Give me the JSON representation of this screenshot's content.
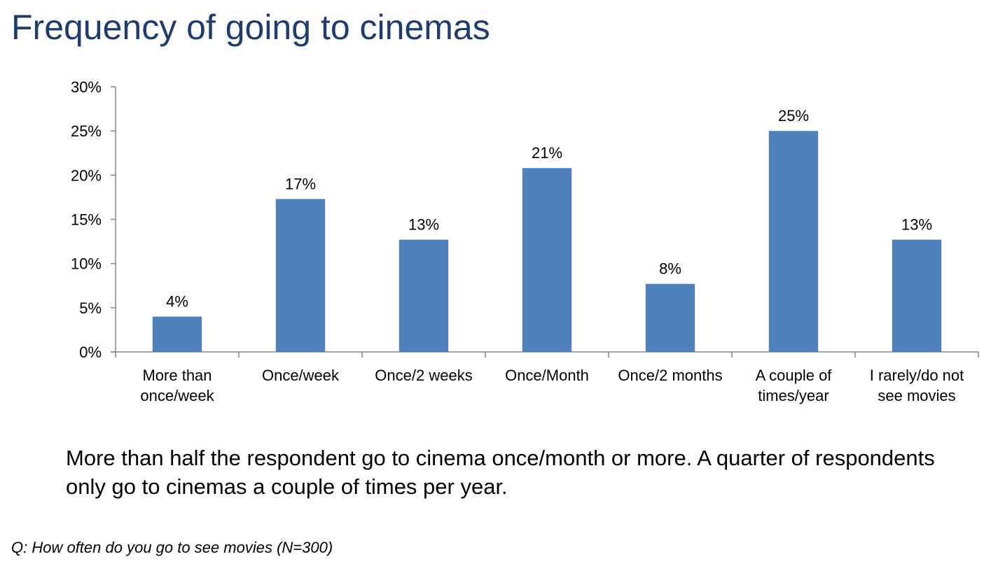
{
  "title": "Frequency of going to cinemas",
  "summary": "More than half the respondent go to cinema once/month or more. A quarter of respondents only go to cinemas a couple of times per year.",
  "footnote": "Q: How often do you go to see movies (N=300)",
  "colors": {
    "title": "#1f3c6e",
    "bar": "#4f81bd",
    "axis": "#868686"
  },
  "chart_data": {
    "type": "bar",
    "title": "",
    "xlabel": "",
    "ylabel": "",
    "ylim": [
      0,
      30
    ],
    "yticks": [
      "0%",
      "5%",
      "10%",
      "15%",
      "20%",
      "25%",
      "30%"
    ],
    "categories": [
      [
        "More than",
        "once/week"
      ],
      [
        "Once/week"
      ],
      [
        "Once/2 weeks"
      ],
      [
        "Once/Month"
      ],
      [
        "Once/2 months"
      ],
      [
        "A couple of",
        "times/year"
      ],
      [
        "I rarely/do not",
        "see movies"
      ]
    ],
    "values": [
      4,
      17.3,
      12.7,
      20.8,
      7.7,
      25,
      12.7
    ],
    "data_labels": [
      "4%",
      "17%",
      "13%",
      "21%",
      "8%",
      "25%",
      "13%"
    ],
    "legend": "none",
    "grid": false
  }
}
